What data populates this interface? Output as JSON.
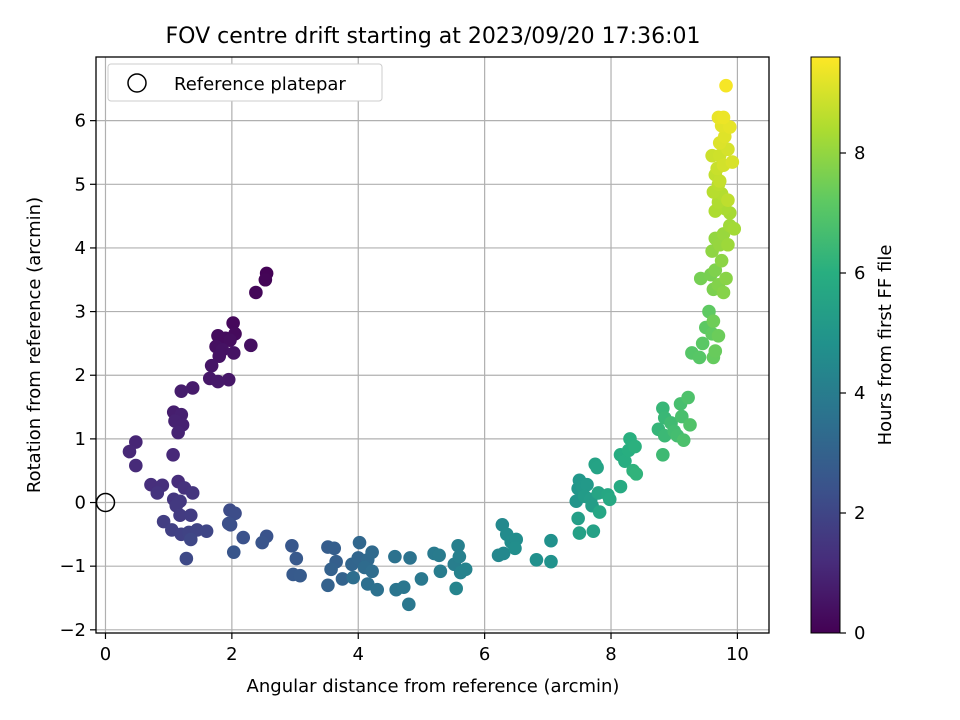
{
  "chart_data": {
    "type": "scatter",
    "title": "FOV centre drift starting at 2023/09/20 17:36:01",
    "xlabel": "Angular distance from reference (arcmin)",
    "ylabel": "Rotation from reference (arcmin)",
    "xlim": [
      -0.15,
      10.5
    ],
    "ylim": [
      -2.05,
      7.0
    ],
    "xticks": [
      0,
      2,
      4,
      6,
      8,
      10
    ],
    "xtick_labels": [
      "0",
      "2",
      "4",
      "6",
      "8",
      "10"
    ],
    "yticks": [
      -2,
      -1,
      0,
      1,
      2,
      3,
      4,
      5,
      6
    ],
    "ytick_labels": [
      "−2",
      "−1",
      "0",
      "1",
      "2",
      "3",
      "4",
      "5",
      "6"
    ],
    "grid": true,
    "legend": {
      "position": "upper-left",
      "label": "Reference platepar"
    },
    "reference_point": {
      "x": 0,
      "y": 0
    },
    "colorbar": {
      "label": "Hours from first FF file",
      "colormap": "viridis",
      "range": [
        0,
        9.6
      ],
      "ticks": [
        0,
        2,
        4,
        6,
        8
      ],
      "tick_labels": [
        "0",
        "2",
        "4",
        "6",
        "8"
      ]
    },
    "points": [
      {
        "x": 2.55,
        "y": 3.6,
        "c": 0.05
      },
      {
        "x": 2.53,
        "y": 3.5,
        "c": 0.1
      },
      {
        "x": 2.38,
        "y": 3.3,
        "c": 0.15
      },
      {
        "x": 2.02,
        "y": 2.82,
        "c": 0.2
      },
      {
        "x": 2.05,
        "y": 2.65,
        "c": 0.25
      },
      {
        "x": 1.78,
        "y": 2.62,
        "c": 0.3
      },
      {
        "x": 1.9,
        "y": 2.58,
        "c": 0.3
      },
      {
        "x": 1.97,
        "y": 2.55,
        "c": 0.35
      },
      {
        "x": 2.3,
        "y": 2.47,
        "c": 0.4
      },
      {
        "x": 1.75,
        "y": 2.45,
        "c": 0.4
      },
      {
        "x": 1.85,
        "y": 2.4,
        "c": 0.45
      },
      {
        "x": 2.03,
        "y": 2.35,
        "c": 0.5
      },
      {
        "x": 1.8,
        "y": 2.3,
        "c": 0.5
      },
      {
        "x": 1.68,
        "y": 2.15,
        "c": 0.55
      },
      {
        "x": 1.65,
        "y": 1.95,
        "c": 0.6
      },
      {
        "x": 1.95,
        "y": 1.93,
        "c": 0.6
      },
      {
        "x": 1.78,
        "y": 1.9,
        "c": 0.65
      },
      {
        "x": 1.38,
        "y": 1.8,
        "c": 0.7
      },
      {
        "x": 1.2,
        "y": 1.75,
        "c": 0.75
      },
      {
        "x": 1.08,
        "y": 1.42,
        "c": 0.8
      },
      {
        "x": 1.2,
        "y": 1.38,
        "c": 0.85
      },
      {
        "x": 1.1,
        "y": 1.28,
        "c": 0.9
      },
      {
        "x": 1.22,
        "y": 1.22,
        "c": 0.9
      },
      {
        "x": 1.15,
        "y": 1.1,
        "c": 0.95
      },
      {
        "x": 0.48,
        "y": 0.95,
        "c": 1.0
      },
      {
        "x": 0.38,
        "y": 0.8,
        "c": 1.05
      },
      {
        "x": 1.07,
        "y": 0.75,
        "c": 1.1
      },
      {
        "x": 0.48,
        "y": 0.58,
        "c": 1.15
      },
      {
        "x": 1.15,
        "y": 0.33,
        "c": 1.2
      },
      {
        "x": 0.72,
        "y": 0.28,
        "c": 1.25
      },
      {
        "x": 0.9,
        "y": 0.27,
        "c": 1.3
      },
      {
        "x": 1.25,
        "y": 0.23,
        "c": 1.35
      },
      {
        "x": 0.82,
        "y": 0.15,
        "c": 1.4
      },
      {
        "x": 1.38,
        "y": 0.15,
        "c": 1.45
      },
      {
        "x": 1.08,
        "y": 0.05,
        "c": 1.5
      },
      {
        "x": 1.18,
        "y": 0.02,
        "c": 1.55
      },
      {
        "x": 1.12,
        "y": -0.05,
        "c": 1.6
      },
      {
        "x": 1.18,
        "y": -0.2,
        "c": 1.65
      },
      {
        "x": 1.35,
        "y": -0.2,
        "c": 1.7
      },
      {
        "x": 0.92,
        "y": -0.3,
        "c": 1.75
      },
      {
        "x": 1.05,
        "y": -0.43,
        "c": 1.8
      },
      {
        "x": 1.2,
        "y": -0.5,
        "c": 1.85
      },
      {
        "x": 1.32,
        "y": -0.47,
        "c": 1.9
      },
      {
        "x": 1.45,
        "y": -0.43,
        "c": 1.95
      },
      {
        "x": 1.6,
        "y": -0.45,
        "c": 2.0
      },
      {
        "x": 1.35,
        "y": -0.58,
        "c": 2.05
      },
      {
        "x": 1.28,
        "y": -0.88,
        "c": 2.1
      },
      {
        "x": 1.97,
        "y": -0.12,
        "c": 2.2
      },
      {
        "x": 2.05,
        "y": -0.17,
        "c": 2.25
      },
      {
        "x": 1.98,
        "y": -0.35,
        "c": 2.3
      },
      {
        "x": 1.95,
        "y": -0.33,
        "c": 2.35
      },
      {
        "x": 2.18,
        "y": -0.55,
        "c": 2.4
      },
      {
        "x": 2.55,
        "y": -0.53,
        "c": 2.45
      },
      {
        "x": 2.48,
        "y": -0.63,
        "c": 2.5
      },
      {
        "x": 2.03,
        "y": -0.78,
        "c": 2.55
      },
      {
        "x": 2.95,
        "y": -0.68,
        "c": 2.6
      },
      {
        "x": 3.02,
        "y": -0.88,
        "c": 2.65
      },
      {
        "x": 2.97,
        "y": -1.13,
        "c": 2.7
      },
      {
        "x": 3.08,
        "y": -1.15,
        "c": 2.75
      },
      {
        "x": 3.52,
        "y": -0.7,
        "c": 2.8
      },
      {
        "x": 3.62,
        "y": -0.72,
        "c": 2.85
      },
      {
        "x": 3.65,
        "y": -0.93,
        "c": 2.9
      },
      {
        "x": 3.57,
        "y": -1.05,
        "c": 2.95
      },
      {
        "x": 3.52,
        "y": -1.3,
        "c": 3.0
      },
      {
        "x": 3.75,
        "y": -1.2,
        "c": 3.05
      },
      {
        "x": 3.9,
        "y": -0.97,
        "c": 3.1
      },
      {
        "x": 4.0,
        "y": -0.87,
        "c": 3.15
      },
      {
        "x": 4.02,
        "y": -0.63,
        "c": 3.2
      },
      {
        "x": 4.15,
        "y": -0.9,
        "c": 3.25
      },
      {
        "x": 4.22,
        "y": -0.78,
        "c": 3.3
      },
      {
        "x": 4.1,
        "y": -1.02,
        "c": 3.35
      },
      {
        "x": 4.22,
        "y": -1.08,
        "c": 3.4
      },
      {
        "x": 3.92,
        "y": -1.18,
        "c": 3.45
      },
      {
        "x": 4.15,
        "y": -1.28,
        "c": 3.5
      },
      {
        "x": 4.3,
        "y": -1.37,
        "c": 3.55
      },
      {
        "x": 4.58,
        "y": -0.85,
        "c": 3.6
      },
      {
        "x": 4.82,
        "y": -0.87,
        "c": 3.65
      },
      {
        "x": 4.6,
        "y": -1.37,
        "c": 3.7
      },
      {
        "x": 4.72,
        "y": -1.33,
        "c": 3.75
      },
      {
        "x": 4.8,
        "y": -1.6,
        "c": 3.8
      },
      {
        "x": 5.0,
        "y": -1.2,
        "c": 3.85
      },
      {
        "x": 5.2,
        "y": -0.8,
        "c": 3.9
      },
      {
        "x": 5.28,
        "y": -0.83,
        "c": 3.95
      },
      {
        "x": 5.3,
        "y": -1.08,
        "c": 4.0
      },
      {
        "x": 5.52,
        "y": -0.97,
        "c": 4.05
      },
      {
        "x": 5.58,
        "y": -0.68,
        "c": 4.1
      },
      {
        "x": 5.6,
        "y": -0.85,
        "c": 4.15
      },
      {
        "x": 5.62,
        "y": -1.1,
        "c": 4.2
      },
      {
        "x": 5.7,
        "y": -1.05,
        "c": 4.25
      },
      {
        "x": 5.55,
        "y": -1.35,
        "c": 4.3
      },
      {
        "x": 6.22,
        "y": -0.83,
        "c": 4.4
      },
      {
        "x": 6.3,
        "y": -0.8,
        "c": 4.45
      },
      {
        "x": 6.28,
        "y": -0.35,
        "c": 4.5
      },
      {
        "x": 6.35,
        "y": -0.5,
        "c": 4.55
      },
      {
        "x": 6.42,
        "y": -0.62,
        "c": 4.6
      },
      {
        "x": 6.5,
        "y": -0.58,
        "c": 4.65
      },
      {
        "x": 6.48,
        "y": -0.72,
        "c": 4.7
      },
      {
        "x": 6.82,
        "y": -0.9,
        "c": 4.75
      },
      {
        "x": 7.05,
        "y": -0.6,
        "c": 4.8
      },
      {
        "x": 7.05,
        "y": -0.93,
        "c": 4.85
      },
      {
        "x": 7.45,
        "y": 0.02,
        "c": 4.95
      },
      {
        "x": 7.48,
        "y": 0.22,
        "c": 5.0
      },
      {
        "x": 7.5,
        "y": 0.35,
        "c": 5.05
      },
      {
        "x": 7.55,
        "y": 0.25,
        "c": 5.1
      },
      {
        "x": 7.62,
        "y": 0.28,
        "c": 5.15
      },
      {
        "x": 7.58,
        "y": 0.1,
        "c": 5.2
      },
      {
        "x": 7.68,
        "y": 0.05,
        "c": 5.25
      },
      {
        "x": 7.7,
        "y": -0.05,
        "c": 5.3
      },
      {
        "x": 7.48,
        "y": -0.25,
        "c": 5.35
      },
      {
        "x": 7.5,
        "y": -0.48,
        "c": 5.4
      },
      {
        "x": 7.72,
        "y": -0.45,
        "c": 5.45
      },
      {
        "x": 7.75,
        "y": 0.6,
        "c": 5.5
      },
      {
        "x": 7.78,
        "y": 0.55,
        "c": 5.55
      },
      {
        "x": 7.8,
        "y": 0.15,
        "c": 5.6
      },
      {
        "x": 7.82,
        "y": -0.15,
        "c": 5.65
      },
      {
        "x": 7.95,
        "y": 0.12,
        "c": 5.7
      },
      {
        "x": 7.98,
        "y": 0.05,
        "c": 5.75
      },
      {
        "x": 8.15,
        "y": 0.25,
        "c": 5.85
      },
      {
        "x": 8.15,
        "y": 0.75,
        "c": 5.9
      },
      {
        "x": 8.22,
        "y": 0.65,
        "c": 5.95
      },
      {
        "x": 8.28,
        "y": 0.82,
        "c": 6.0
      },
      {
        "x": 8.3,
        "y": 1.0,
        "c": 6.05
      },
      {
        "x": 8.38,
        "y": 0.88,
        "c": 6.1
      },
      {
        "x": 8.35,
        "y": 0.5,
        "c": 6.15
      },
      {
        "x": 8.4,
        "y": 0.45,
        "c": 6.2
      },
      {
        "x": 8.75,
        "y": 1.15,
        "c": 6.3
      },
      {
        "x": 8.82,
        "y": 1.48,
        "c": 6.35
      },
      {
        "x": 8.85,
        "y": 1.33,
        "c": 6.4
      },
      {
        "x": 8.85,
        "y": 1.05,
        "c": 6.45
      },
      {
        "x": 8.82,
        "y": 0.75,
        "c": 6.5
      },
      {
        "x": 8.95,
        "y": 1.25,
        "c": 6.55
      },
      {
        "x": 9.0,
        "y": 1.12,
        "c": 6.6
      },
      {
        "x": 9.05,
        "y": 1.05,
        "c": 6.65
      },
      {
        "x": 9.1,
        "y": 1.55,
        "c": 6.7
      },
      {
        "x": 9.12,
        "y": 1.35,
        "c": 6.75
      },
      {
        "x": 9.15,
        "y": 0.98,
        "c": 6.8
      },
      {
        "x": 9.22,
        "y": 1.65,
        "c": 6.85
      },
      {
        "x": 9.25,
        "y": 1.22,
        "c": 6.9
      },
      {
        "x": 9.28,
        "y": 2.35,
        "c": 7.0
      },
      {
        "x": 9.4,
        "y": 2.28,
        "c": 7.05
      },
      {
        "x": 9.45,
        "y": 2.5,
        "c": 7.1
      },
      {
        "x": 9.5,
        "y": 2.75,
        "c": 7.15
      },
      {
        "x": 9.55,
        "y": 3.0,
        "c": 7.2
      },
      {
        "x": 9.6,
        "y": 2.65,
        "c": 7.25
      },
      {
        "x": 9.62,
        "y": 2.28,
        "c": 7.3
      },
      {
        "x": 9.65,
        "y": 2.38,
        "c": 7.35
      },
      {
        "x": 9.7,
        "y": 2.62,
        "c": 7.4
      },
      {
        "x": 9.62,
        "y": 2.85,
        "c": 7.45
      },
      {
        "x": 9.42,
        "y": 3.52,
        "c": 7.55
      },
      {
        "x": 9.58,
        "y": 3.58,
        "c": 7.6
      },
      {
        "x": 9.62,
        "y": 3.35,
        "c": 7.65
      },
      {
        "x": 9.65,
        "y": 3.65,
        "c": 7.7
      },
      {
        "x": 9.7,
        "y": 3.42,
        "c": 7.75
      },
      {
        "x": 9.78,
        "y": 3.3,
        "c": 7.8
      },
      {
        "x": 9.82,
        "y": 3.52,
        "c": 7.85
      },
      {
        "x": 9.75,
        "y": 3.8,
        "c": 7.9
      },
      {
        "x": 9.6,
        "y": 3.95,
        "c": 7.95
      },
      {
        "x": 9.65,
        "y": 4.15,
        "c": 8.0
      },
      {
        "x": 9.72,
        "y": 4.05,
        "c": 8.05
      },
      {
        "x": 9.78,
        "y": 4.22,
        "c": 8.1
      },
      {
        "x": 9.85,
        "y": 4.05,
        "c": 8.15
      },
      {
        "x": 9.88,
        "y": 4.35,
        "c": 8.2
      },
      {
        "x": 9.95,
        "y": 4.3,
        "c": 8.25
      },
      {
        "x": 9.88,
        "y": 4.55,
        "c": 8.3
      },
      {
        "x": 9.8,
        "y": 4.62,
        "c": 8.35
      },
      {
        "x": 9.65,
        "y": 4.58,
        "c": 8.4
      },
      {
        "x": 9.7,
        "y": 4.72,
        "c": 8.45
      },
      {
        "x": 9.75,
        "y": 4.85,
        "c": 8.5
      },
      {
        "x": 9.62,
        "y": 4.88,
        "c": 8.55
      },
      {
        "x": 9.7,
        "y": 5.0,
        "c": 8.6
      },
      {
        "x": 9.85,
        "y": 4.75,
        "c": 8.65
      },
      {
        "x": 9.65,
        "y": 5.15,
        "c": 8.7
      },
      {
        "x": 9.72,
        "y": 5.05,
        "c": 8.75
      },
      {
        "x": 9.68,
        "y": 5.25,
        "c": 8.8
      },
      {
        "x": 9.6,
        "y": 5.45,
        "c": 8.85
      },
      {
        "x": 9.72,
        "y": 5.45,
        "c": 8.9
      },
      {
        "x": 9.78,
        "y": 5.3,
        "c": 8.95
      },
      {
        "x": 9.85,
        "y": 5.55,
        "c": 9.0
      },
      {
        "x": 9.92,
        "y": 5.35,
        "c": 9.05
      },
      {
        "x": 9.72,
        "y": 5.65,
        "c": 9.1
      },
      {
        "x": 9.8,
        "y": 5.75,
        "c": 9.15
      },
      {
        "x": 9.75,
        "y": 5.92,
        "c": 9.2
      },
      {
        "x": 9.88,
        "y": 5.9,
        "c": 9.25
      },
      {
        "x": 9.7,
        "y": 6.05,
        "c": 9.3
      },
      {
        "x": 9.78,
        "y": 6.05,
        "c": 9.35
      },
      {
        "x": 9.82,
        "y": 6.55,
        "c": 9.5
      }
    ]
  }
}
